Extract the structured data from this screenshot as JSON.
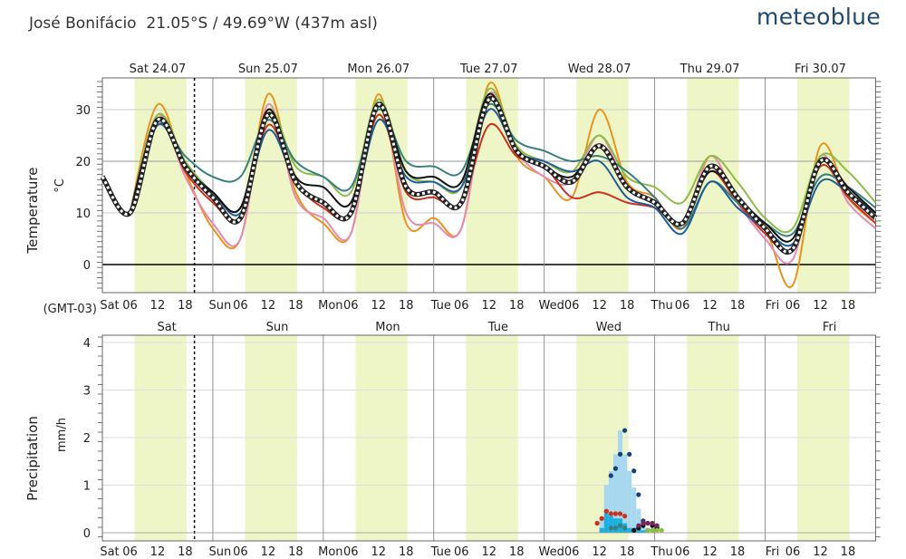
{
  "header": {
    "location": "José Bonifácio",
    "coords": "21.05°S / 49.69°W (437m asl)",
    "brand": "meteoblue"
  },
  "chart_data": [
    {
      "type": "line",
      "title": "Temperature",
      "ylabel": "°C",
      "ylim": [
        -5,
        37
      ],
      "yticks": [
        0,
        10,
        20,
        30
      ],
      "timezone": "(GMT-03)",
      "days": [
        "Sat 24.07",
        "Sun 25.07",
        "Mon 26.07",
        "Tue 27.07",
        "Wed 28.07",
        "Thu 29.07",
        "Fri 30.07"
      ],
      "x_hours_from_sat_00": [
        0,
        6,
        12,
        18,
        24,
        30,
        36,
        42,
        48,
        54,
        60,
        66,
        72,
        78,
        84,
        90,
        96,
        102,
        108,
        114,
        120,
        126,
        132,
        138,
        144,
        150,
        156,
        162,
        168
      ],
      "current_time_hour": 20,
      "series": [
        {
          "name": "orange",
          "color": "#e8941c",
          "values": [
            null,
            10,
            31,
            18,
            7,
            5,
            33,
            14,
            8,
            6,
            33,
            8,
            9,
            7,
            35,
            21,
            17,
            13,
            30,
            16,
            13,
            7,
            21,
            12,
            7,
            -4,
            23,
            13,
            8
          ]
        },
        {
          "name": "pink",
          "color": "#e58bb4",
          "values": [
            null,
            10,
            29,
            17,
            8,
            5,
            31,
            13,
            9,
            6,
            32,
            10,
            8,
            7,
            33,
            22,
            17,
            16,
            25,
            15,
            12,
            8,
            21,
            12,
            5,
            1,
            21,
            12,
            7
          ]
        },
        {
          "name": "red",
          "color": "#c8321e",
          "values": [
            null,
            10,
            28,
            18,
            12,
            9,
            27,
            16,
            11,
            10,
            29,
            14,
            13,
            12,
            27,
            21,
            19,
            13,
            14,
            12,
            11,
            8,
            18,
            12,
            6,
            3,
            19,
            13,
            8
          ]
        },
        {
          "name": "green",
          "color": "#8cbd45",
          "values": [
            null,
            10,
            29,
            20,
            14,
            11,
            30,
            19,
            17,
            14,
            32,
            18,
            16,
            15,
            34,
            23,
            20,
            18,
            25,
            17,
            15,
            12,
            21,
            16,
            9,
            7,
            21,
            18,
            12
          ]
        },
        {
          "name": "teal",
          "color": "#3a7f7f",
          "values": [
            null,
            10,
            27,
            21,
            17,
            17,
            28,
            20,
            17,
            15,
            30,
            20,
            19,
            18,
            31,
            24,
            22,
            20,
            21,
            18,
            13,
            7,
            16,
            12,
            8,
            6,
            17,
            15,
            11
          ]
        },
        {
          "name": "blue",
          "color": "#1e5f99",
          "values": [
            null,
            10,
            27,
            19,
            14,
            10,
            26,
            16,
            12,
            10,
            28,
            17,
            16,
            15,
            30,
            22,
            20,
            18,
            20,
            13,
            11,
            6,
            16,
            11,
            7,
            4,
            16,
            14,
            10
          ]
        },
        {
          "name": "black",
          "color": "#111111",
          "values": [
            null,
            10,
            28,
            19,
            14,
            11,
            30,
            17,
            15,
            12,
            31,
            18,
            17,
            16,
            33,
            22,
            19,
            17,
            23,
            15,
            12,
            8,
            18,
            13,
            8,
            5,
            20,
            15,
            10
          ]
        },
        {
          "name": "multimodel",
          "color": "#333333",
          "dashed": true,
          "values": [
            17,
            10,
            28,
            19,
            13,
            9,
            29,
            16,
            12,
            10,
            31,
            15,
            14,
            12,
            32,
            22,
            19,
            16,
            23,
            15,
            12,
            8,
            19,
            13,
            7,
            3,
            20,
            14,
            9
          ]
        }
      ]
    },
    {
      "type": "bar",
      "title": "Precipitation",
      "ylabel": "mm/h",
      "ylim": [
        -0.1,
        4.2
      ],
      "yticks": [
        0,
        1,
        2,
        3,
        4
      ],
      "day_labels": [
        "Sat",
        "Sun",
        "Mon",
        "Tue",
        "Wed",
        "Thu",
        "Fri"
      ],
      "bars_light": [
        {
          "hour": 108,
          "value": 0.3
        },
        {
          "hour": 109,
          "value": 1.0
        },
        {
          "hour": 110,
          "value": 1.3
        },
        {
          "hour": 111,
          "value": 1.65
        },
        {
          "hour": 112,
          "value": 2.15
        },
        {
          "hour": 113,
          "value": 1.65
        },
        {
          "hour": 114,
          "value": 1.3
        },
        {
          "hour": 115,
          "value": 0.95
        },
        {
          "hour": 116,
          "value": 0.5
        },
        {
          "hour": 117,
          "value": 0.25
        },
        {
          "hour": 118,
          "value": 0.1
        }
      ],
      "bars_dark": [
        {
          "hour": 108,
          "value": 0.1
        },
        {
          "hour": 109,
          "value": 0.4
        },
        {
          "hour": 110,
          "value": 0.35
        },
        {
          "hour": 111,
          "value": 0.3
        },
        {
          "hour": 112,
          "value": 0.3
        },
        {
          "hour": 113,
          "value": 0.2
        },
        {
          "hour": 114,
          "value": 0.1
        },
        {
          "hour": 115,
          "value": 0.1
        },
        {
          "hour": 116,
          "value": 0.1
        },
        {
          "hour": 117,
          "value": 0.05
        }
      ],
      "dots": [
        {
          "color": "#1a3f7a",
          "points": [
            [
              109,
              0.45
            ],
            [
              110,
              1.2
            ],
            [
              111,
              1.35
            ],
            [
              112,
              1.65
            ],
            [
              113,
              2.15
            ],
            [
              114,
              1.65
            ],
            [
              115,
              1.3
            ],
            [
              116,
              0.8
            ],
            [
              117,
              0.25
            ],
            [
              118,
              0.05
            ]
          ]
        },
        {
          "color": "#c8321e",
          "points": [
            [
              107,
              0.2
            ],
            [
              108,
              0.3
            ],
            [
              109,
              0.45
            ],
            [
              110,
              0.4
            ],
            [
              111,
              0.4
            ],
            [
              112,
              0.4
            ],
            [
              113,
              0.35
            ]
          ]
        },
        {
          "color": "#111111",
          "points": [
            [
              115,
              0.05
            ],
            [
              116,
              0.1
            ],
            [
              117,
              0.15
            ],
            [
              118,
              0.2
            ],
            [
              119,
              0.15
            ],
            [
              120,
              0.1
            ]
          ]
        },
        {
          "color": "#7a2560",
          "points": [
            [
              116,
              0.15
            ],
            [
              117,
              0.2
            ],
            [
              118,
              0.2
            ],
            [
              119,
              0.2
            ],
            [
              120,
              0.15
            ]
          ]
        },
        {
          "color": "#3a7f7f",
          "points": [
            [
              110,
              0.1
            ],
            [
              111,
              0.1
            ],
            [
              112,
              0.15
            ],
            [
              113,
              0.1
            ]
          ]
        },
        {
          "color": "#8cbd45",
          "points": [
            [
              118,
              0.05
            ],
            [
              119,
              0.05
            ],
            [
              120,
              0.05
            ],
            [
              121,
              0.05
            ]
          ]
        }
      ]
    }
  ]
}
